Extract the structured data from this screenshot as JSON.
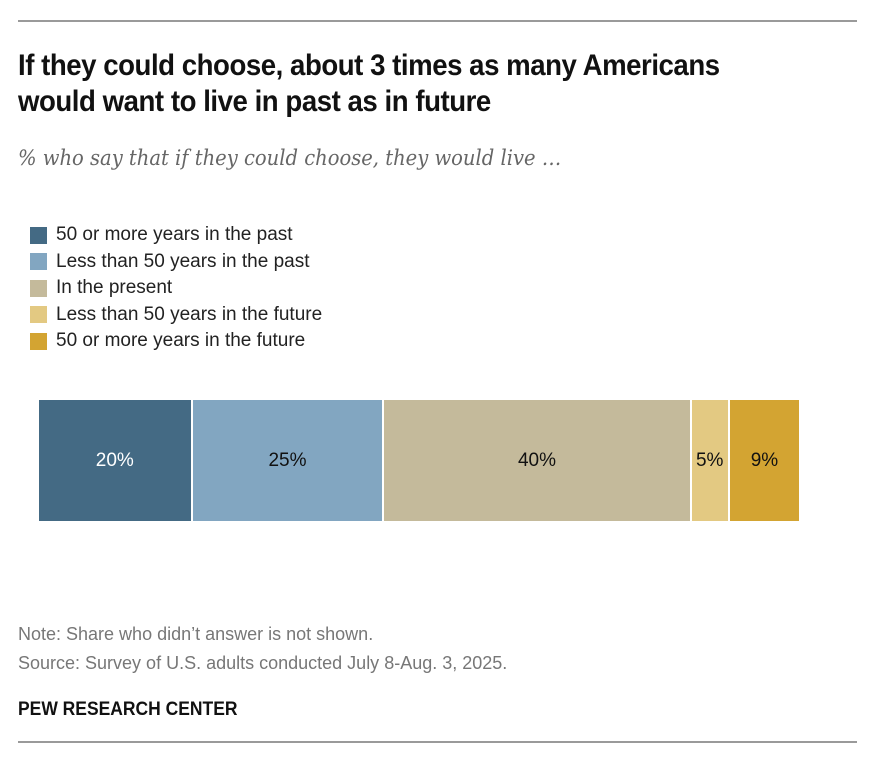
{
  "chart_data": {
    "type": "bar",
    "orientation": "horizontal-stacked",
    "title": "If they could choose, about 3 times as many Americans would want to live in past as in future",
    "subtitle": "% who say that if they could choose, they would live …",
    "legend_position": "top-left",
    "series": [
      {
        "name": "50 or more years in the past",
        "value": 20,
        "label": "20%",
        "color": "#446a84",
        "text_color": "#ffffff"
      },
      {
        "name": "Less than 50 years in the past",
        "value": 25,
        "label": "25%",
        "color": "#82a6c1",
        "text_color": "#111111"
      },
      {
        "name": "In the present",
        "value": 40,
        "label": "40%",
        "color": "#c4ba9b",
        "text_color": "#111111"
      },
      {
        "name": "Less than 50 years in the future",
        "value": 5,
        "label": "5%",
        "color": "#e3c982",
        "text_color": "#111111"
      },
      {
        "name": "50 or more years in the future",
        "value": 9,
        "label": "9%",
        "color": "#d3a432",
        "text_color": "#111111"
      }
    ]
  },
  "footer": {
    "note": "Note: Share who didn’t answer is not shown.",
    "source": "Source: Survey of U.S. adults conducted July 8-Aug. 3, 2025.",
    "brand": "PEW RESEARCH CENTER"
  }
}
